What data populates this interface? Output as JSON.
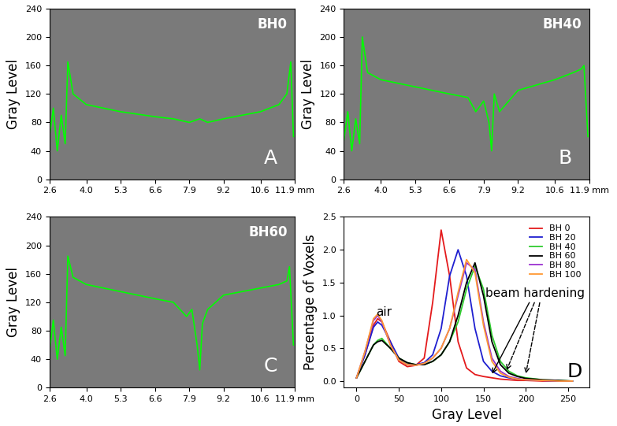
{
  "chart_data": [
    {
      "type": "line",
      "panel": "A",
      "title": "BH0",
      "y_label": "Gray Level",
      "x": [
        2.6,
        2.75,
        2.9,
        3.05,
        3.2,
        3.3,
        3.5,
        4.0,
        5.3,
        6.6,
        7.3,
        7.9,
        8.3,
        8.6,
        9.2,
        10.6,
        11.3,
        11.6,
        11.75,
        11.85
      ],
      "values": [
        60,
        100,
        40,
        90,
        50,
        165,
        120,
        105,
        95,
        88,
        85,
        80,
        85,
        80,
        85,
        95,
        105,
        120,
        165,
        60
      ],
      "color": "#00ff00",
      "xlim": [
        2.6,
        11.9
      ],
      "xticks": [
        2.6,
        4.0,
        5.3,
        6.6,
        7.9,
        9.2,
        10.6,
        {
          "value": 11.9,
          "label": "11.9 mm"
        }
      ],
      "ylim": [
        0,
        240
      ],
      "yticks": [
        0,
        40,
        80,
        120,
        160,
        200,
        240
      ]
    },
    {
      "type": "line",
      "panel": "B",
      "title": "BH40",
      "y_label": "Gray Level",
      "x": [
        2.6,
        2.75,
        2.9,
        3.05,
        3.2,
        3.3,
        3.5,
        4.0,
        5.3,
        6.6,
        7.3,
        7.6,
        7.9,
        8.1,
        8.2,
        8.3,
        8.5,
        9.2,
        10.6,
        11.3,
        11.6,
        11.7,
        11.85
      ],
      "values": [
        55,
        95,
        40,
        85,
        50,
        200,
        150,
        140,
        130,
        120,
        115,
        95,
        110,
        80,
        40,
        120,
        95,
        125,
        140,
        150,
        155,
        160,
        60
      ],
      "color": "#00ff00",
      "xlim": [
        2.6,
        11.9
      ],
      "xticks": [
        2.6,
        4.0,
        5.3,
        6.6,
        7.9,
        9.2,
        10.6,
        {
          "value": 11.9,
          "label": "11.9 mm"
        }
      ],
      "ylim": [
        0,
        240
      ],
      "yticks": [
        0,
        40,
        80,
        120,
        160,
        200,
        240
      ]
    },
    {
      "type": "line",
      "panel": "C",
      "title": "BH60",
      "y_label": "Gray Level",
      "x": [
        2.6,
        2.75,
        2.9,
        3.05,
        3.2,
        3.3,
        3.5,
        4.0,
        5.3,
        6.6,
        7.3,
        7.8,
        8.0,
        8.2,
        8.3,
        8.4,
        8.6,
        9.2,
        10.6,
        11.3,
        11.6,
        11.7,
        11.85
      ],
      "values": [
        50,
        95,
        40,
        85,
        45,
        185,
        155,
        145,
        135,
        125,
        120,
        100,
        110,
        60,
        25,
        90,
        110,
        130,
        140,
        145,
        150,
        170,
        60
      ],
      "color": "#00ff00",
      "xlim": [
        2.6,
        11.9
      ],
      "xticks": [
        2.6,
        4.0,
        5.3,
        6.6,
        7.9,
        9.2,
        10.6,
        {
          "value": 11.9,
          "label": "11.9 mm"
        }
      ],
      "ylim": [
        0,
        240
      ],
      "yticks": [
        0,
        40,
        80,
        120,
        160,
        200,
        240
      ]
    },
    {
      "type": "line",
      "panel": "D",
      "x_label": "Gray Level",
      "y_label": "Percentage of Voxels",
      "annotations": [
        "air",
        "beam hardening"
      ],
      "x": [
        0,
        10,
        20,
        25,
        30,
        40,
        50,
        60,
        70,
        80,
        90,
        100,
        110,
        120,
        130,
        140,
        150,
        160,
        170,
        180,
        190,
        200,
        220,
        240,
        255
      ],
      "series": [
        {
          "name": "BH 0",
          "color": "#e41a1c",
          "values": [
            0.05,
            0.4,
            0.85,
            0.95,
            0.9,
            0.6,
            0.3,
            0.22,
            0.24,
            0.35,
            1.2,
            2.3,
            1.6,
            0.6,
            0.2,
            0.1,
            0.07,
            0.05,
            0.03,
            0.02,
            0.01,
            0.01,
            0,
            0,
            0
          ]
        },
        {
          "name": "BH 20",
          "color": "#1f1fd0",
          "values": [
            0.05,
            0.4,
            0.82,
            0.9,
            0.85,
            0.6,
            0.35,
            0.25,
            0.25,
            0.28,
            0.4,
            0.8,
            1.6,
            2.0,
            1.6,
            0.8,
            0.3,
            0.15,
            0.08,
            0.05,
            0.03,
            0.02,
            0.01,
            0,
            0
          ]
        },
        {
          "name": "BH 40",
          "color": "#2ecc2e",
          "values": [
            0.05,
            0.3,
            0.55,
            0.62,
            0.65,
            0.5,
            0.35,
            0.28,
            0.25,
            0.25,
            0.3,
            0.4,
            0.6,
            0.9,
            1.4,
            1.75,
            1.4,
            0.7,
            0.3,
            0.15,
            0.08,
            0.05,
            0.02,
            0.01,
            0
          ]
        },
        {
          "name": "BH 60",
          "color": "#000000",
          "values": [
            0.05,
            0.3,
            0.55,
            0.6,
            0.62,
            0.5,
            0.35,
            0.28,
            0.25,
            0.25,
            0.3,
            0.4,
            0.6,
            1.0,
            1.5,
            1.8,
            1.3,
            0.6,
            0.25,
            0.12,
            0.07,
            0.04,
            0.02,
            0.01,
            0
          ]
        },
        {
          "name": "BH 80",
          "color": "#9b30d0",
          "values": [
            0.05,
            0.45,
            0.92,
            1.0,
            0.9,
            0.55,
            0.32,
            0.25,
            0.24,
            0.27,
            0.35,
            0.5,
            0.8,
            1.3,
            1.8,
            1.7,
            0.9,
            0.35,
            0.15,
            0.07,
            0.04,
            0.02,
            0.01,
            0,
            0
          ]
        },
        {
          "name": "BH 100",
          "color": "#ff9933",
          "values": [
            0.05,
            0.45,
            0.95,
            1.02,
            0.92,
            0.55,
            0.32,
            0.25,
            0.24,
            0.27,
            0.35,
            0.5,
            0.8,
            1.35,
            1.85,
            1.65,
            0.85,
            0.3,
            0.12,
            0.06,
            0.03,
            0.02,
            0.01,
            0,
            0
          ]
        }
      ],
      "legend": "upper right",
      "xlim": [
        -15,
        275
      ],
      "xticks": [
        0,
        50,
        100,
        150,
        200,
        250
      ],
      "ylim": [
        -0.1,
        2.5
      ],
      "yticks": [
        {
          "value": 0.0,
          "label": "0.0"
        },
        {
          "value": 0.5,
          "label": "0.5"
        },
        {
          "value": 1.0,
          "label": "1.0"
        },
        {
          "value": 1.5,
          "label": "1.5"
        },
        {
          "value": 2.0,
          "label": "2.0"
        },
        {
          "value": 2.5,
          "label": "2.5"
        }
      ]
    }
  ]
}
